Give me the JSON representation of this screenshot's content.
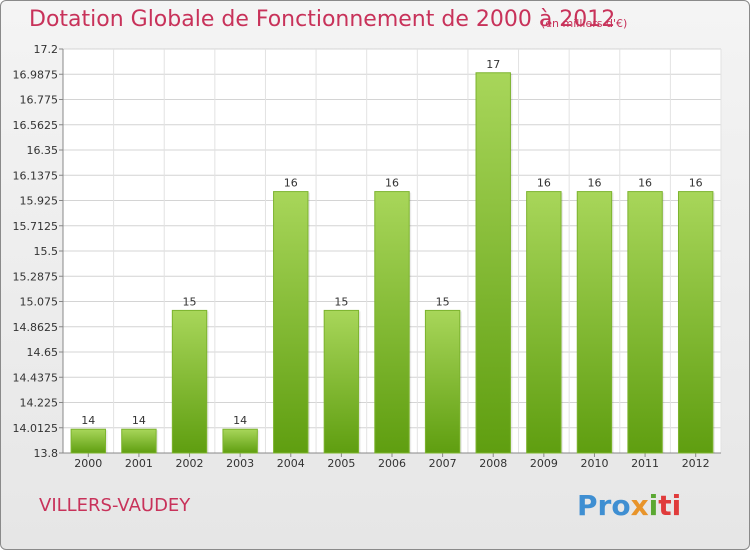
{
  "header": {
    "title": "Dotation Globale de Fonctionnement de 2000 à 2012",
    "unit": "(en milliers d'€)"
  },
  "footer": {
    "commune": "VILLERS-VAUDEY",
    "logo": {
      "p1": "Pro",
      "p2": "x",
      "p3": "i",
      "p4": "ti"
    }
  },
  "colors": {
    "bar_top": "#a8d65a",
    "bar_bottom": "#5f9e10",
    "title": "#c8325a"
  },
  "chart_data": {
    "type": "bar",
    "title": "Dotation Globale de Fonctionnement de 2000 à 2012",
    "subtitle": "(en milliers d'€)",
    "xlabel": "",
    "ylabel": "",
    "categories": [
      "2000",
      "2001",
      "2002",
      "2003",
      "2004",
      "2005",
      "2006",
      "2007",
      "2008",
      "2009",
      "2010",
      "2011",
      "2012"
    ],
    "values": [
      14,
      14,
      15,
      14,
      16,
      15,
      16,
      15,
      17,
      16,
      16,
      16,
      16
    ],
    "data_labels": [
      "14",
      "14",
      "15",
      "14",
      "16",
      "15",
      "16",
      "15",
      "17",
      "16",
      "16",
      "16",
      "16"
    ],
    "ylim": [
      13.8,
      17.2
    ],
    "yticks": [
      13.8,
      14.0125,
      14.225,
      14.4375,
      14.65,
      14.8625,
      15.075,
      15.2875,
      15.5,
      15.7125,
      15.925,
      16.1375,
      16.35,
      16.5625,
      16.775,
      16.9875,
      17.2
    ],
    "ytick_labels": [
      "13.8",
      "14.0125",
      "14.225",
      "14.4375",
      "14.65",
      "14.8625",
      "15.075",
      "15.2875",
      "15.5",
      "15.7125",
      "15.925",
      "16.1375",
      "16.35",
      "16.5625",
      "16.775",
      "16.9875",
      "17.2"
    ],
    "grid": true
  }
}
